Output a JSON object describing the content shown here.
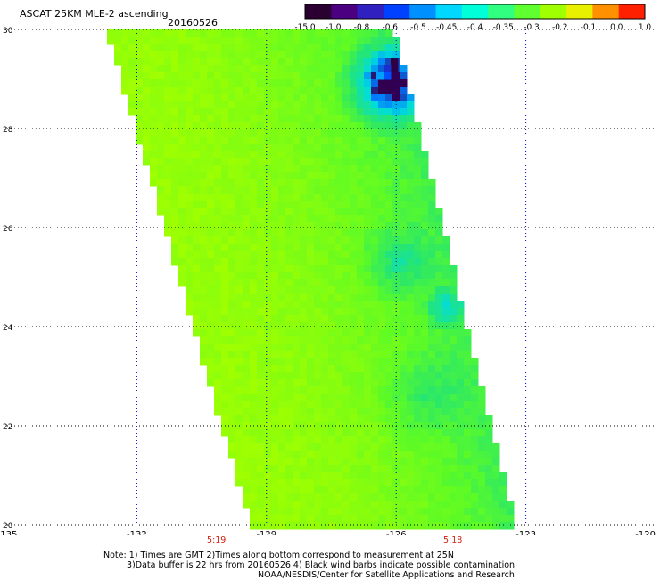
{
  "title": "ASCAT 25KM MLE-2 ascending",
  "date": "20160526",
  "colorbar": {
    "labels": [
      "-15.0",
      "-1.0",
      "-0.8",
      "-0.6",
      "-0.5",
      "-0.45",
      "-0.4",
      "-0.35",
      "-0.3",
      "-0.2",
      "-0.1",
      "0.0",
      "1.0"
    ],
    "colors": [
      "#2a0030",
      "#4a0080",
      "#3020c0",
      "#0040ff",
      "#0090ff",
      "#00d8ff",
      "#00ffd8",
      "#30ff80",
      "#60ff30",
      "#a0ff00",
      "#e8f000",
      "#ff9000",
      "#ff2000"
    ]
  },
  "map": {
    "lon_ticks": [
      "-135",
      "-132",
      "-129",
      "-126",
      "-123",
      "-120"
    ],
    "lat_ticks": [
      "30",
      "28",
      "26",
      "24",
      "22",
      "20"
    ],
    "lon_range": [
      -135,
      -120
    ],
    "lat_range": [
      20,
      30
    ]
  },
  "times": [
    {
      "label": "5:19",
      "lon": -130.2
    },
    {
      "label": "5:18",
      "lon": -124.6
    }
  ],
  "notes": {
    "line1": "Note: 1) Times are GMT 2)Times along bottom correspond to measurement at 25N",
    "line2": "3)Data buffer is 22 hrs from 20160526 4) Black wind barbs indicate possible contamination",
    "line3": "NOAA/NESDIS/Center for Satellite Applications and Research"
  }
}
